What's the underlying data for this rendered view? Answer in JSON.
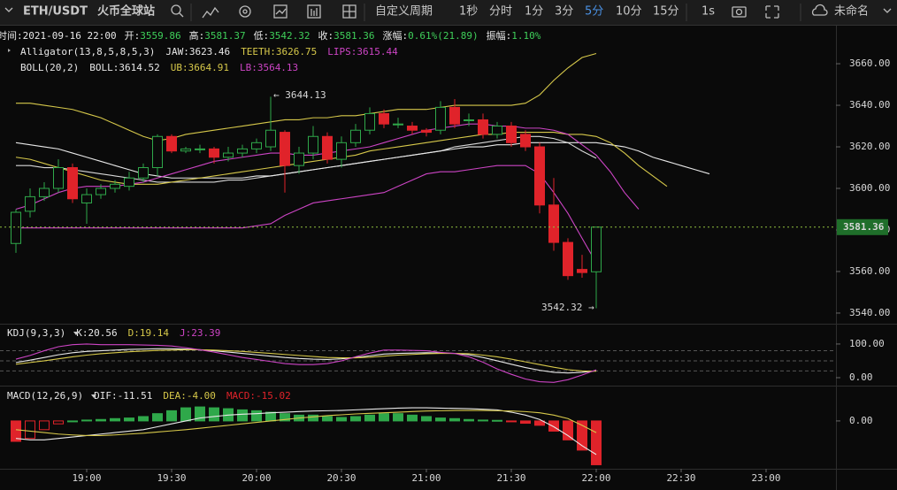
{
  "toolbar": {
    "symbol": "ETH/USDT",
    "exchange": "火币全球站",
    "period_custom": "自定义周期",
    "periods": [
      "1秒",
      "分时",
      "1分",
      "3分",
      "5分",
      "10分",
      "15分",
      "1s"
    ],
    "active_period": "5分",
    "user": "未命名"
  },
  "info": [
    [
      "时间:",
      "2021-09-16 22:00"
    ],
    [
      "开:",
      "3559.86"
    ],
    [
      "高:",
      "3581.37"
    ],
    [
      "低:",
      "3542.32"
    ],
    [
      "收:",
      "3581.36"
    ],
    [
      "涨幅:",
      "0.61%(21.89)"
    ],
    [
      "振幅:",
      "1.10%"
    ]
  ],
  "indicators": {
    "alligator": [
      "Alligator(13,8,5,8,5,3)",
      "JAW:3623.46",
      "TEETH:3626.75",
      "LIPS:3615.44"
    ],
    "boll": [
      "BOLL(20,2)",
      "BOLL:3614.52",
      "UB:3664.91",
      "LB:3564.13"
    ],
    "kdj": [
      "KDJ(9,3,3)",
      "K:20.56",
      "D:19.14",
      "J:23.39"
    ],
    "macd": [
      "MACD(12,26,9)",
      "DIF:-11.51",
      "DEA:-4.00",
      "MACD:-15.02"
    ]
  },
  "price_label": "3581.36",
  "annotations": [
    "← 3644.13",
    "3542.32 →"
  ],
  "chart_data": {
    "type": "candlestick",
    "categories": [
      null,
      null,
      null,
      null,
      null,
      "19:00",
      null,
      null,
      null,
      null,
      null,
      "19:30",
      null,
      null,
      null,
      null,
      null,
      "20:00",
      null,
      null,
      null,
      null,
      null,
      "20:30",
      null,
      null,
      null,
      null,
      null,
      "21:00",
      null,
      null,
      null,
      null,
      null,
      "21:30",
      null,
      null,
      null,
      null,
      null,
      "22:00",
      null,
      null,
      null,
      null,
      null,
      "22:30",
      null,
      null,
      null,
      null,
      null,
      "23:00"
    ],
    "open": [
      3573.5,
      3589,
      3596,
      3600,
      3610,
      3593,
      3597,
      3600,
      3601,
      3605,
      3610,
      3625,
      3618,
      3619,
      3619,
      3615,
      3617,
      3619,
      3620,
      3627,
      3611,
      3617,
      3625,
      3614,
      3622,
      3628,
      3636,
      3631,
      3630,
      3628,
      3628,
      3639,
      3633,
      3633,
      3626,
      3630,
      3626,
      3620,
      3592,
      3574,
      3561,
      3559.86,
      null,
      null,
      null,
      null,
      null,
      null,
      null,
      null,
      null,
      null,
      null,
      null
    ],
    "high": [
      3590,
      3600,
      3603,
      3614,
      3612,
      3600,
      3602,
      3604,
      3608,
      3612,
      3626,
      3626,
      3620,
      3621,
      3620,
      3620,
      3621,
      3624,
      3644.13,
      3628,
      3620,
      3630,
      3627,
      3625,
      3631,
      3639,
      3638,
      3634,
      3632,
      3629,
      3642,
      3643,
      3636,
      3636,
      3632,
      3632,
      3628,
      3622,
      3605,
      3576,
      3568,
      3581.37,
      null,
      null,
      null,
      null,
      null,
      null,
      null,
      null,
      null,
      null,
      null,
      null
    ],
    "low": [
      3569,
      3586,
      3594,
      3598,
      3593,
      3583,
      3595,
      3598,
      3599,
      3603,
      3606,
      3617,
      3617,
      3617,
      3612,
      3613,
      3615,
      3617,
      3618,
      3598,
      3607,
      3614,
      3612,
      3610,
      3620,
      3626,
      3629,
      3629,
      3626,
      3625,
      3626,
      3629,
      3630,
      3624,
      3624,
      3620,
      3618,
      3588,
      3570,
      3556,
      3557,
      3542.32,
      null,
      null,
      null,
      null,
      null,
      null,
      null,
      null,
      null,
      null,
      null,
      null
    ],
    "close": [
      3588.5,
      3596,
      3600,
      3610,
      3595,
      3597,
      3600,
      3602,
      3605,
      3610,
      3625,
      3618,
      3619,
      3619,
      3615,
      3617,
      3619,
      3622,
      3628,
      3611,
      3617,
      3625,
      3614,
      3622,
      3628,
      3636,
      3631,
      3631,
      3628,
      3627,
      3639,
      3631,
      3633,
      3626,
      3630,
      3622,
      3620,
      3592,
      3574,
      3558,
      3559.5,
      3581.36,
      null,
      null,
      null,
      null,
      null,
      null,
      null,
      null,
      null,
      null,
      null,
      null
    ],
    "up_color": "#2fa84a",
    "down_color": "#e0232a",
    "series": [
      {
        "name": "BOLL",
        "color": "#d8d8d8",
        "values": [
          3611,
          3611,
          3610,
          3610,
          3609,
          3608,
          3607,
          3606,
          3605,
          3604,
          3603,
          3603,
          3603,
          3603,
          3603,
          3604,
          3604,
          3605,
          3606,
          3607,
          3608,
          3609,
          3610,
          3611,
          3612,
          3613,
          3614,
          3615,
          3616,
          3617,
          3618,
          3620,
          3621,
          3622,
          3623,
          3624,
          3625,
          3625,
          3624,
          3622,
          3618,
          3614.52,
          null,
          null,
          null,
          null,
          null,
          null,
          null,
          null,
          null,
          null,
          null,
          null
        ]
      },
      {
        "name": "UB",
        "color": "#d6c84a",
        "values": [
          3641,
          3641,
          3640,
          3639,
          3638,
          3636,
          3634,
          3631,
          3628,
          3625,
          3623,
          3624,
          3626,
          3627,
          3628,
          3629,
          3630,
          3631,
          3632,
          3633,
          3633,
          3634,
          3634,
          3635,
          3635,
          3636,
          3637,
          3638,
          3638,
          3638,
          3639,
          3640,
          3640,
          3640,
          3640,
          3640,
          3641,
          3645,
          3652,
          3658,
          3663,
          3664.91,
          null,
          null,
          null,
          null,
          null,
          null,
          null,
          null,
          null,
          null,
          null,
          null
        ]
      },
      {
        "name": "LB",
        "color": "#cc44c4",
        "values": [
          3581,
          3581,
          3581,
          3581,
          3581,
          3581,
          3581,
          3581,
          3581,
          3581,
          3581,
          3581,
          3581,
          3581,
          3581,
          3581,
          3581,
          3582,
          3583,
          3587,
          3590,
          3593,
          3594,
          3595,
          3596,
          3597,
          3598,
          3601,
          3604,
          3607,
          3608,
          3608,
          3609,
          3610,
          3611,
          3611,
          3611,
          3607,
          3598,
          3588,
          3576,
          3564.13,
          null,
          null,
          null,
          null,
          null,
          null,
          null,
          null,
          null,
          null,
          null,
          null
        ]
      },
      {
        "name": "JAW",
        "color": "#e8e8e8",
        "values": [
          3622,
          3621,
          3620,
          3619,
          3617,
          3615,
          3613,
          3611,
          3609,
          3607,
          3606,
          3605,
          3605,
          3605,
          3605,
          3605,
          3605,
          3606,
          3606,
          3607,
          3608,
          3609,
          3610,
          3611,
          3612,
          3613,
          3614,
          3615,
          3616,
          3617,
          3618,
          3619,
          3620,
          3620,
          3621,
          3621,
          3622,
          3622,
          3622,
          3622,
          3622,
          3622,
          3621,
          3620,
          3618,
          3615,
          3613,
          3611,
          3609,
          3607,
          null,
          null,
          null,
          null
        ]
      },
      {
        "name": "TEETH",
        "color": "#d6c84a",
        "values": [
          3615,
          3614,
          3612,
          3610,
          3608,
          3606,
          3604,
          3603,
          3602,
          3602,
          3602,
          3603,
          3604,
          3605,
          3606,
          3607,
          3608,
          3609,
          3610,
          3611,
          3612,
          3613,
          3614,
          3615,
          3616,
          3618,
          3619,
          3620,
          3621,
          3622,
          3623,
          3624,
          3625,
          3626,
          3626,
          3627,
          3627,
          3627,
          3627,
          3626,
          3626,
          3625,
          3622,
          3617,
          3611,
          3606,
          3601,
          null,
          null,
          null,
          null,
          null,
          null,
          null
        ]
      },
      {
        "name": "LIPS",
        "color": "#cc44c4",
        "values": [
          3590,
          3592,
          3595,
          3598,
          3600,
          3601,
          3601,
          3601,
          3602,
          3603,
          3605,
          3607,
          3609,
          3611,
          3613,
          3614,
          3615,
          3616,
          3617,
          3617,
          3616,
          3616,
          3617,
          3618,
          3619,
          3620,
          3622,
          3624,
          3626,
          3628,
          3629,
          3630,
          3631,
          3631,
          3630,
          3630,
          3629,
          3629,
          3628,
          3626,
          3621,
          3616,
          3608,
          3598,
          3590,
          null,
          null,
          null,
          null,
          null,
          null,
          null,
          null,
          null
        ]
      }
    ],
    "ylim": [
      3535.3,
      3677.9
    ],
    "yticks": [
      {
        "value": 3660,
        "label": "3660.00"
      },
      {
        "value": 3640,
        "label": "3640.00"
      },
      {
        "value": 3620,
        "label": "3620.00"
      },
      {
        "value": 3600,
        "label": "3600.00"
      },
      {
        "value": 3580,
        "label": "3580.00"
      },
      {
        "value": 3560,
        "label": "3560.00"
      },
      {
        "value": 3540,
        "label": "3540.00"
      }
    ],
    "kdj": {
      "ylim": [
        -21,
        155
      ],
      "yticks": [
        {
          "value": 100,
          "label": "100.00"
        },
        {
          "value": 0,
          "label": "0.00"
        }
      ],
      "levels": [
        80,
        50,
        20
      ],
      "series": [
        {
          "name": "K",
          "color": "#e8e8e8",
          "values": [
            45,
            52,
            60,
            68,
            74,
            78,
            80,
            82,
            84,
            85,
            86,
            86,
            85,
            83,
            80,
            76,
            72,
            68,
            64,
            60,
            57,
            55,
            54,
            56,
            60,
            65,
            70,
            72,
            73,
            74,
            73,
            72,
            68,
            60,
            50,
            40,
            30,
            22,
            16,
            14,
            16,
            20.56,
            null,
            null,
            null,
            null,
            null,
            null,
            null,
            null,
            null,
            null,
            null,
            null
          ]
        },
        {
          "name": "D",
          "color": "#d6c84a",
          "values": [
            40,
            45,
            50,
            56,
            62,
            67,
            71,
            74,
            77,
            79,
            81,
            82,
            83,
            83,
            82,
            80,
            78,
            75,
            72,
            69,
            66,
            63,
            60,
            59,
            59,
            61,
            64,
            67,
            69,
            71,
            72,
            72,
            71,
            67,
            62,
            55,
            47,
            39,
            31,
            24,
            20,
            19.14,
            null,
            null,
            null,
            null,
            null,
            null,
            null,
            null,
            null,
            null,
            null,
            null
          ]
        },
        {
          "name": "J",
          "color": "#cc44c4",
          "values": [
            55,
            66,
            80,
            92,
            98,
            100,
            98,
            98,
            98,
            97,
            96,
            94,
            89,
            83,
            76,
            68,
            60,
            54,
            48,
            42,
            39,
            39,
            42,
            50,
            62,
            73,
            82,
            82,
            81,
            80,
            75,
            72,
            62,
            46,
            26,
            10,
            -4,
            -12,
            -14,
            -6,
            8,
            23.39,
            null,
            null,
            null,
            null,
            null,
            null,
            null,
            null,
            null,
            null,
            null,
            null
          ]
        }
      ]
    },
    "macd": {
      "ylim": [
        -16.4,
        11.8
      ],
      "yticks": [
        {
          "value": 0,
          "label": "0.00"
        }
      ],
      "histogram": [
        -7,
        -6,
        -3,
        -1,
        0,
        0.3,
        0.5,
        0.8,
        1,
        1.5,
        2.5,
        3.5,
        4.5,
        4.8,
        4.5,
        4.2,
        3.8,
        3.5,
        3,
        2.5,
        2,
        2,
        1.5,
        1.2,
        1.5,
        2,
        2.5,
        2.5,
        2,
        1.5,
        1,
        0.8,
        0.5,
        0.3,
        0.2,
        -0.3,
        -0.8,
        -1.5,
        -3.5,
        -6.5,
        -10,
        -15.02,
        null,
        null,
        null,
        null,
        null,
        null,
        null,
        null,
        null,
        null,
        null,
        null
      ],
      "series": [
        {
          "name": "DIF",
          "color": "#e8e8e8",
          "values": [
            -6,
            -6.5,
            -6.5,
            -6,
            -5.5,
            -5,
            -4.5,
            -4,
            -3.5,
            -3,
            -2,
            -1,
            0,
            1,
            1.5,
            2,
            2.3,
            2.5,
            2.8,
            3,
            3.2,
            3.4,
            3.5,
            3.6,
            3.8,
            4,
            4.2,
            4.4,
            4.5,
            4.5,
            4.4,
            4.3,
            4.2,
            4,
            3.8,
            3,
            2,
            0.5,
            -2,
            -5,
            -8.5,
            -11.51,
            null,
            null,
            null,
            null,
            null,
            null,
            null,
            null,
            null,
            null,
            null,
            null
          ]
        },
        {
          "name": "DEA",
          "color": "#d6c84a",
          "values": [
            -3,
            -3.5,
            -4,
            -4.5,
            -4.8,
            -5,
            -5,
            -4.8,
            -4.5,
            -4.2,
            -3.8,
            -3.4,
            -3,
            -2.5,
            -2,
            -1.5,
            -1,
            -0.5,
            0,
            0.5,
            1,
            1.4,
            1.8,
            2.1,
            2.4,
            2.6,
            2.8,
            3,
            3.2,
            3.4,
            3.5,
            3.6,
            3.6,
            3.6,
            3.5,
            3.4,
            3.2,
            2.8,
            2,
            0.8,
            -1.5,
            -4.0,
            null,
            null,
            null,
            null,
            null,
            null,
            null,
            null,
            null,
            null,
            null,
            null
          ]
        }
      ]
    }
  }
}
